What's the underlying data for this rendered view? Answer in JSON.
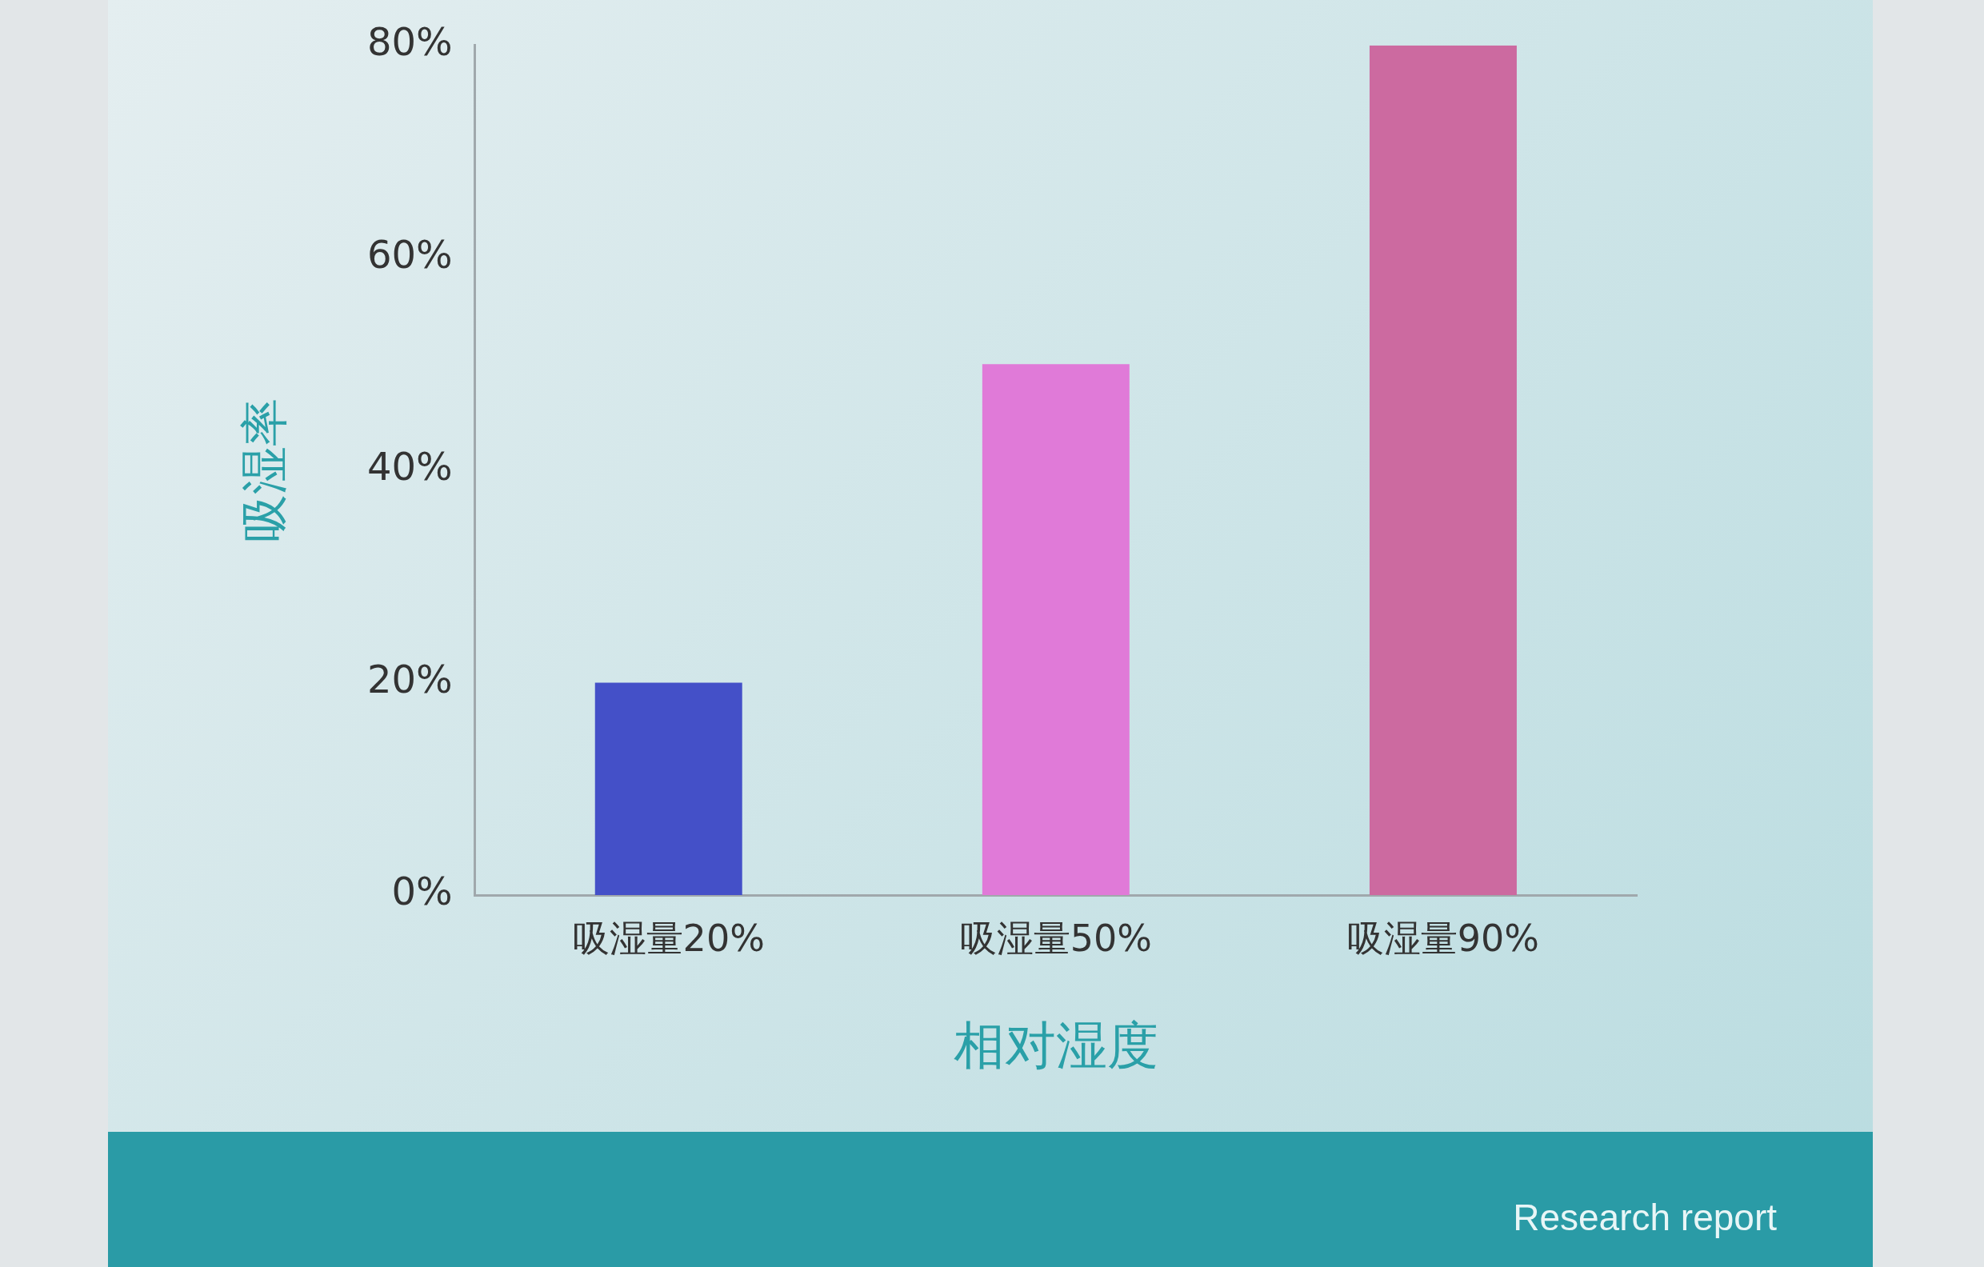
{
  "chart_data": {
    "type": "bar",
    "xlabel": "相对湿度",
    "ylabel": "吸湿率",
    "categories": [
      "吸湿量20%",
      "吸湿量50%",
      "吸湿量90%"
    ],
    "values": [
      20,
      50,
      80
    ],
    "colors": [
      "#4450c8",
      "#e07ad8",
      "#cc6aa0"
    ],
    "ylim": [
      0,
      80
    ],
    "yticks": [
      {
        "value": 0,
        "label": "0%"
      },
      {
        "value": 20,
        "label": "20%"
      },
      {
        "value": 40,
        "label": "40%"
      },
      {
        "value": 60,
        "label": "60%"
      },
      {
        "value": 80,
        "label": "80%"
      }
    ],
    "grid": false,
    "legend": false,
    "annotations": [
      "Research report"
    ]
  }
}
